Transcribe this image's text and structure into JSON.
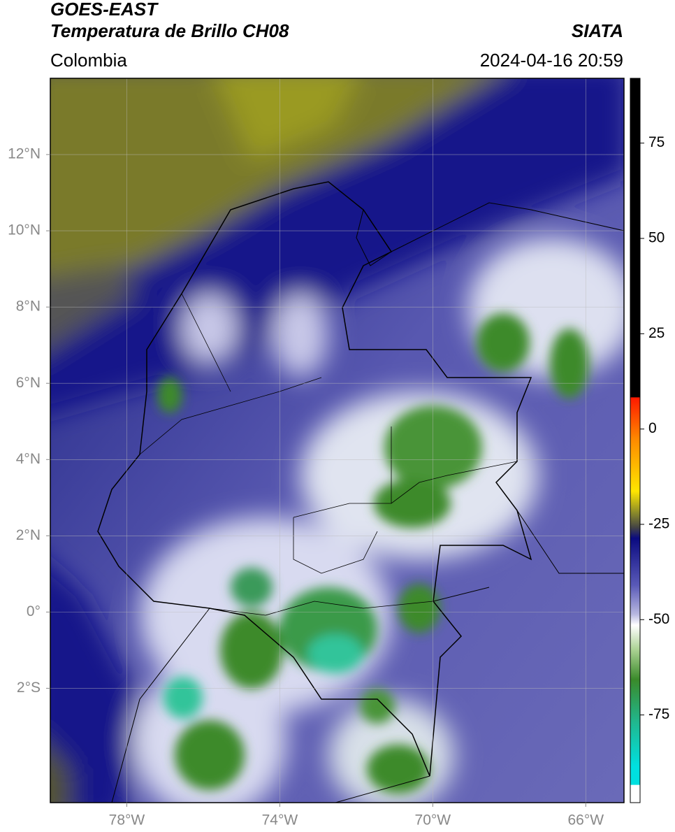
{
  "header": {
    "title": "GOES-EAST",
    "subtitle": "Temperatura de Brillo CH08",
    "source": "SIATA",
    "region": "Colombia",
    "datetime": "2024-04-16 20:59"
  },
  "map": {
    "lon_range": [
      -80,
      -65
    ],
    "lat_range": [
      -5,
      14
    ],
    "lon_ticks": [
      {
        "value": -78,
        "label": "78°W"
      },
      {
        "value": -74,
        "label": "74°W"
      },
      {
        "value": -70,
        "label": "70°W"
      },
      {
        "value": -66,
        "label": "66°W"
      }
    ],
    "lat_ticks": [
      {
        "value": 12,
        "label": "12°N"
      },
      {
        "value": 10,
        "label": "10°N"
      },
      {
        "value": 8,
        "label": "8°N"
      },
      {
        "value": 6,
        "label": "6°N"
      },
      {
        "value": 4,
        "label": "4°N"
      },
      {
        "value": 2,
        "label": "2°N"
      },
      {
        "value": 0,
        "label": "0°"
      },
      {
        "value": -2,
        "label": "2°S"
      }
    ]
  },
  "colorbar": {
    "range": [
      -98,
      92
    ],
    "ticks": [
      75,
      50,
      25,
      0,
      -25,
      -50,
      -75
    ]
  }
}
